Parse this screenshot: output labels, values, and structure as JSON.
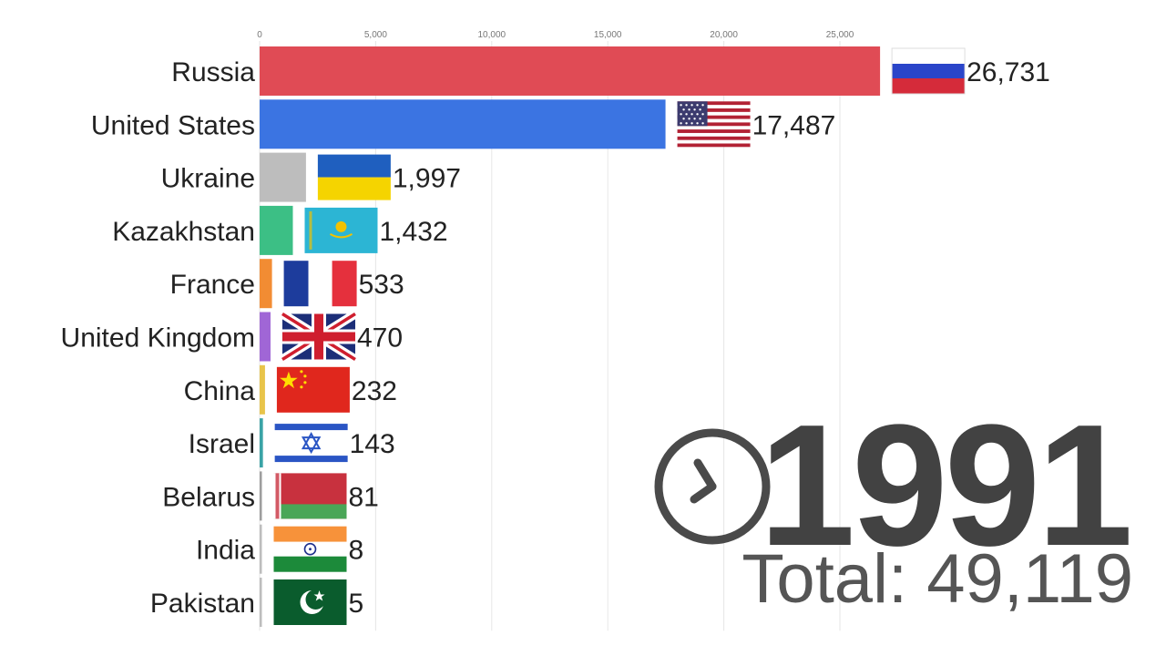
{
  "chart_data": {
    "type": "bar",
    "orientation": "horizontal",
    "title": "",
    "xlabel": "",
    "ylabel": "",
    "xlim": [
      0,
      27000
    ],
    "x_ticks": [
      0,
      5000,
      10000,
      15000,
      20000,
      25000
    ],
    "x_tick_labels": [
      "0",
      "5,000",
      "10,000",
      "15,000",
      "20,000",
      "25,000"
    ],
    "grid": true,
    "categories": [
      "Russia",
      "United States",
      "Ukraine",
      "Kazakhstan",
      "France",
      "United Kingdom",
      "China",
      "Israel",
      "Belarus",
      "India",
      "Pakistan"
    ],
    "values": [
      26731,
      17487,
      1997,
      1432,
      533,
      470,
      232,
      143,
      81,
      8,
      5
    ],
    "value_labels": [
      "26,731",
      "17,487",
      "1,997",
      "1,432",
      "533",
      "470",
      "232",
      "143",
      "81",
      "8",
      "5"
    ],
    "colors": [
      "#e04b55",
      "#3b74e2",
      "#bdbdbd",
      "#3cbf85",
      "#f28c33",
      "#a066d6",
      "#e8c44a",
      "#3aa3a6",
      "#9e9e9e",
      "#bdbdbd",
      "#bdbdbd"
    ],
    "flags": [
      "russia-flag-icon",
      "united-states-flag-icon",
      "ukraine-flag-icon",
      "kazakhstan-flag-icon",
      "france-flag-icon",
      "united-kingdom-flag-icon",
      "china-flag-icon",
      "israel-flag-icon",
      "belarus-flag-icon",
      "india-flag-icon",
      "pakistan-flag-icon"
    ]
  },
  "year": "1991",
  "total_text": "Total: 49,119",
  "clock_icon": "clock-icon"
}
